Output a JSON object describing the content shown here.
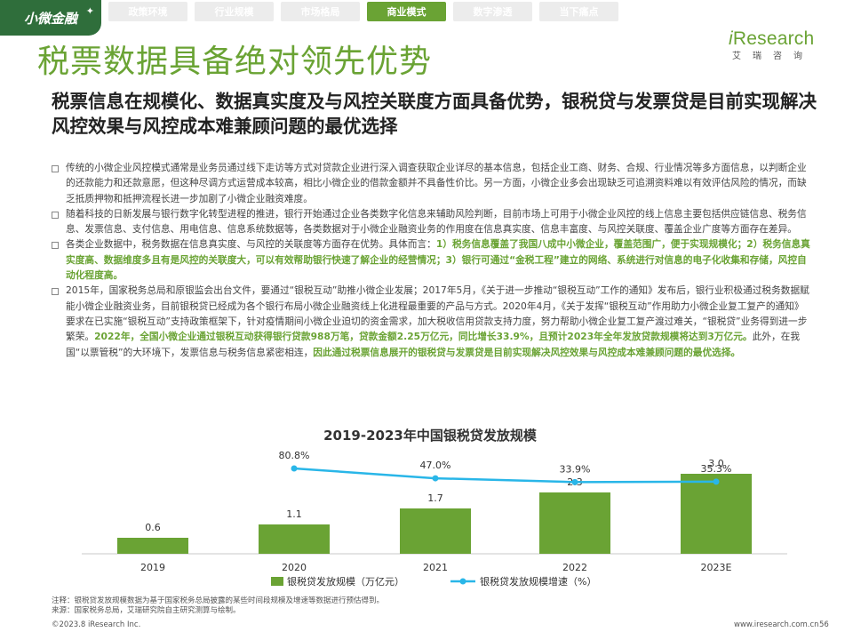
{
  "brand": {
    "badge_label": "小微金融"
  },
  "nav": {
    "tabs": [
      {
        "label": "政策环境",
        "active": false
      },
      {
        "label": "行业规模",
        "active": false
      },
      {
        "label": "市场格局",
        "active": false
      },
      {
        "label": "商业模式",
        "active": true
      },
      {
        "label": "数字渗透",
        "active": false
      },
      {
        "label": "当下痛点",
        "active": false
      }
    ]
  },
  "logo": {
    "i": "i",
    "word": "Research",
    "sub": "艾瑞咨询"
  },
  "title": "税票数据具备绝对领先优势",
  "subtitle": "税票信息在规模化、数据真实度及与风控关联度方面具备优势，银税贷与发票贷是目前实现解决风控效果与风控成本难兼顾问题的最优选择",
  "bullets": [
    {
      "parts": [
        {
          "text": "传统的小微企业风控模式通常是业务员通过线下走访等方式对贷款企业进行深入调查获取企业详尽的基本信息，包括企业工商、财务、合规、行业情况等多方面信息，以判断企业的还款能力和还款意愿，但这种尽调方式运营成本较高，相比小微企业的借款金额并不具备性价比。另一方面，小微企业多会出现缺乏可追溯资料难以有效评估风险的情况，而缺乏抵质押物和抵押流程长进一步加剧了小微企业融资难度。",
          "hl": false
        }
      ]
    },
    {
      "parts": [
        {
          "text": "随着科技的日新发展与银行数字化转型进程的推进，银行开始通过企业各类数字化信息来辅助风险判断，目前市场上可用于小微企业风控的线上信息主要包括供应链信息、税务信息、发票信息、支付信息、用电信息、信息系统数据等，各类数据对于小微企业融资业务的作用度在信息真实度、信息丰富度、与风控关联度、覆盖企业广度等方面存在差异。",
          "hl": false
        }
      ]
    },
    {
      "parts": [
        {
          "text": "各类企业数据中，税务数据在信息真实度、与风控的关联度等方面存在优势。具体而言：",
          "hl": false
        },
        {
          "text": "1）税务信息覆盖了我国八成中小微企业，覆盖范围广，便于实现规模化；2）税务信息真实度高、数据维度多且有是风控的关联度大，可以有效帮助银行快速了解企业的经营情况；3）银行可通过“金税工程”建立的网络、系统进行对信息的电子化收集和存储，风控自动化程度高。",
          "hl": true
        }
      ]
    },
    {
      "parts": [
        {
          "text": "2015年，国家税务总局和原银监会出台文件，要通过“银税互动”助推小微企业发展；2017年5月，《关于进一步推动“银税互动”工作的通知》发布后，银行业积极通过税务数据赋能小微企业融资业务，目前银税贷已经成为各个银行布局小微企业融资线上化进程最重要的产品与方式。2020年4月，《关于发挥“银税互动”作用助力小微企业复工复产的通知》要求在已实施“银税互动”支持政策框架下，针对疫情期间小微企业迫切的资金需求，加大税收信用贷款支持力度，努力帮助小微企业复工复产渡过难关，“银税贷”业务得到进一步繁荣。",
          "hl": false
        },
        {
          "text": "2022年，全国小微企业通过银税互动获得银行贷款988万笔，贷款金额2.25万亿元，同比增长33.9%，且预计2023年全年发放贷款规模将达到3万亿元。",
          "hl": true
        },
        {
          "text": "此外，在我国“以票管税”的大环境下，发票信息与税务信息紧密相连，",
          "hl": false
        },
        {
          "text": "因此通过税票信息展开的银税贷与发票贷是目前实现解决风控效果与风控成本难兼顾问题的最优选择。",
          "hl": true
        }
      ]
    }
  ],
  "chart_data": {
    "type": "bar",
    "title": "2019-2023年中国银税贷发放规模",
    "categories": [
      "2019",
      "2020",
      "2021",
      "2022",
      "2023E"
    ],
    "series": [
      {
        "name": "银税贷发放规模（万亿元）",
        "type": "bar",
        "values": [
          0.6,
          1.1,
          1.7,
          2.3,
          3.0
        ],
        "labels": [
          "0.6",
          "1.1",
          "1.7",
          "2.3",
          "3.0"
        ],
        "color": "#6aa334"
      },
      {
        "name": "银税贷发放规模增速（%）",
        "type": "line",
        "values": [
          null,
          80.8,
          47.0,
          33.9,
          35.3
        ],
        "labels": [
          "",
          "80.8%",
          "47.0%",
          "33.9%",
          "35.3%"
        ],
        "color": "#29b6e8"
      }
    ],
    "legend_position": "bottom",
    "grid": false
  },
  "footnote": {
    "note": "注释：银税贷发放规模数据为基于国家税务总局披露的某些时间段规模及增速等数据进行预估得到。",
    "source": "来源：国家税务总局，艾瑞研究院自主研究测算与绘制。"
  },
  "footer": {
    "copyright": "©2023.8 iResearch Inc.",
    "website": "www.iresearch.com.cn",
    "page": "56"
  }
}
